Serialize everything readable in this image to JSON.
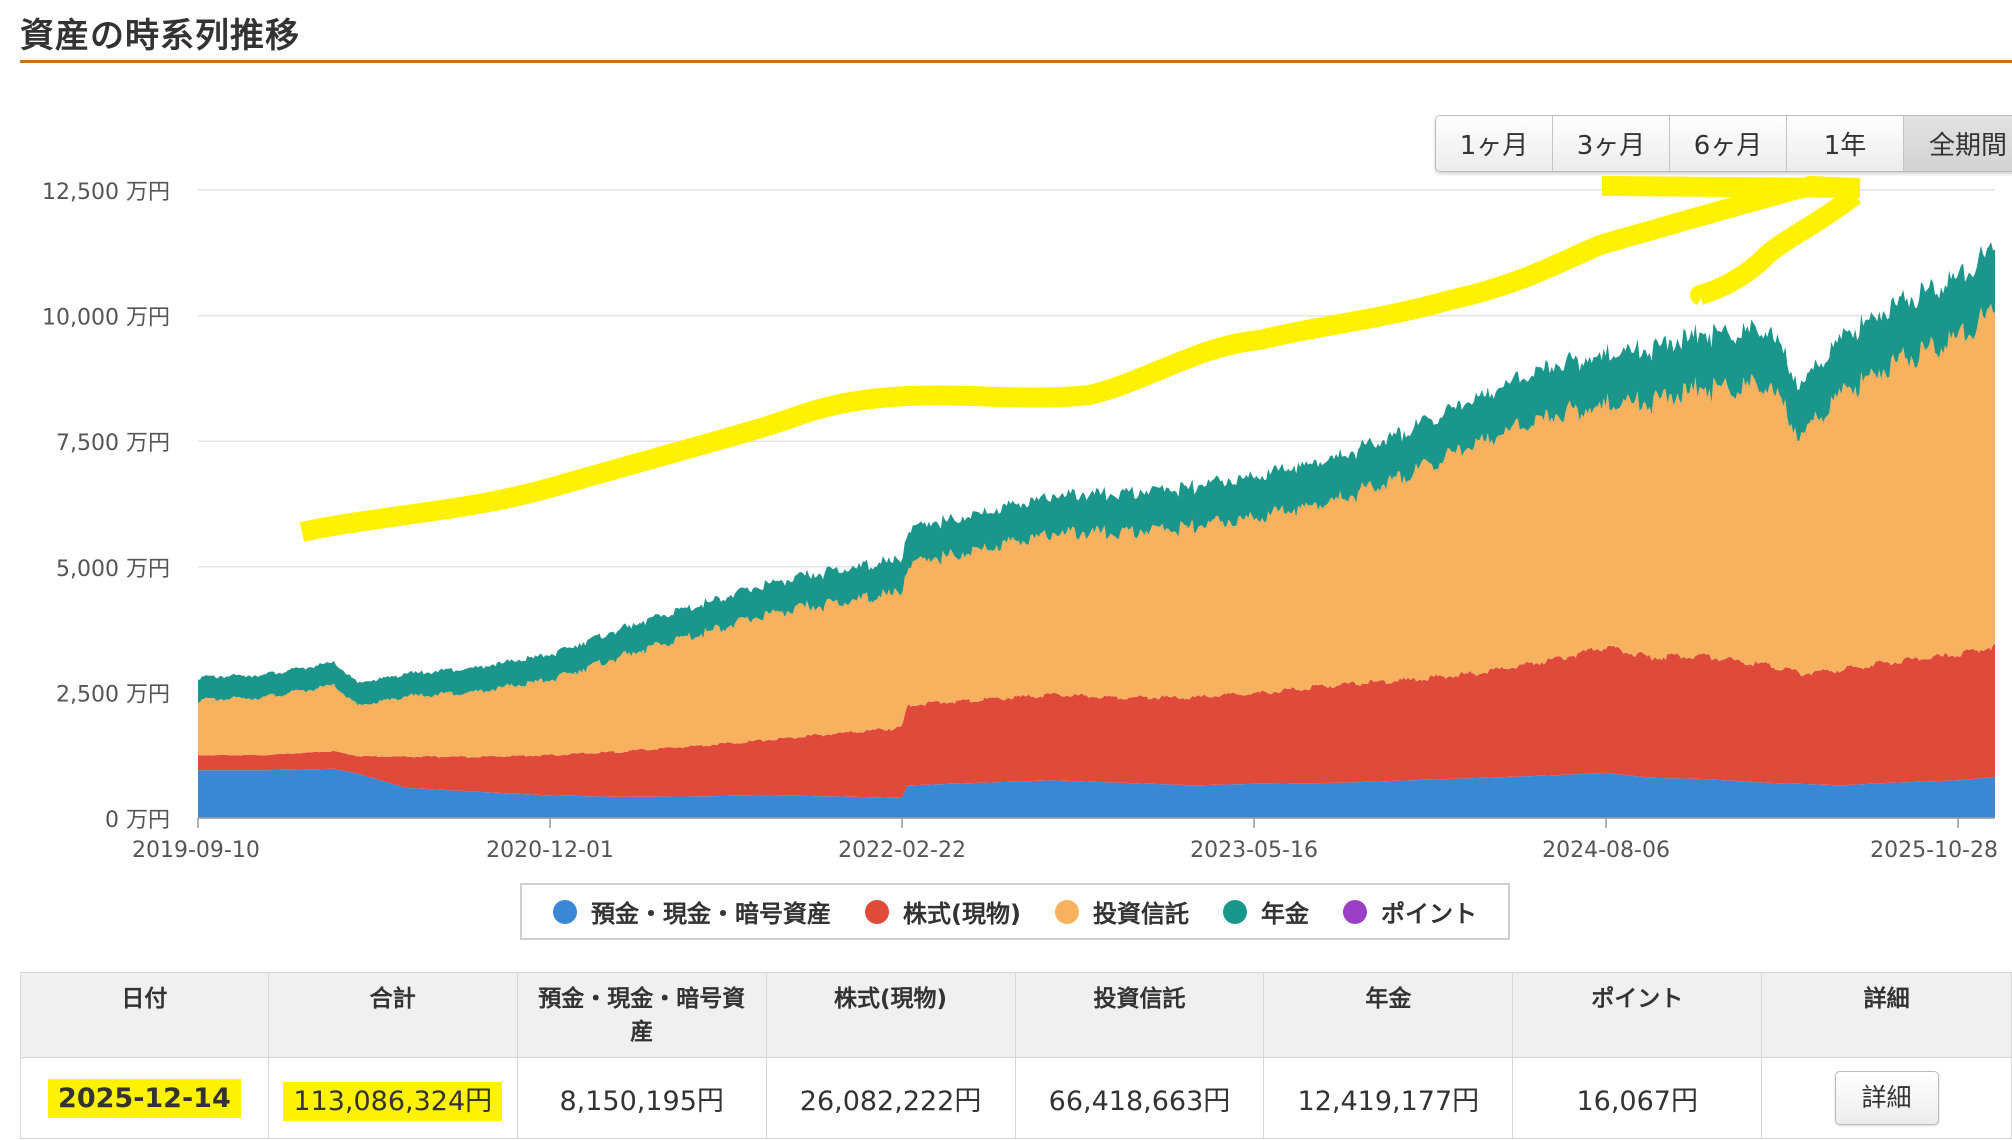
{
  "page": {
    "title": "資産の時系列推移"
  },
  "range_buttons": [
    {
      "label": "1ヶ月"
    },
    {
      "label": "3ヶ月"
    },
    {
      "label": "6ヶ月"
    },
    {
      "label": "1年"
    },
    {
      "label": "全期間",
      "active": true
    }
  ],
  "chart_data": {
    "type": "area",
    "stacked": true,
    "y_ticks": [
      "0 万円",
      "2,500 万円",
      "5,000 万円",
      "7,500 万円",
      "10,000 万円",
      "12,500 万円"
    ],
    "ylim": [
      0,
      12500
    ],
    "y_unit": "万円",
    "x_ticks": [
      "2019-09-10",
      "2020-12-01",
      "2022-02-22",
      "2023-05-16",
      "2024-08-06",
      "2025-10-28"
    ],
    "xlim": [
      "2019-09-10",
      "2025-12-14"
    ],
    "x": [
      "2019-09-10",
      "2019-12-01",
      "2020-03-01",
      "2020-04-01",
      "2020-06-01",
      "2020-09-01",
      "2020-12-01",
      "2021-03-01",
      "2021-06-01",
      "2021-09-01",
      "2021-12-01",
      "2022-02-22",
      "2022-03-01",
      "2022-06-01",
      "2022-09-01",
      "2022-12-01",
      "2023-03-01",
      "2023-05-16",
      "2023-09-01",
      "2023-12-01",
      "2024-03-01",
      "2024-06-01",
      "2024-08-06",
      "2024-10-01",
      "2024-12-01",
      "2025-03-01",
      "2025-04-10",
      "2025-06-01",
      "2025-08-01",
      "2025-10-28",
      "2025-12-14"
    ],
    "series": [
      {
        "name": "預金・現金・暗号資産",
        "color": "#3a87d6",
        "values": [
          950,
          950,
          980,
          880,
          600,
          520,
          450,
          420,
          430,
          450,
          430,
          400,
          650,
          700,
          750,
          700,
          650,
          680,
          700,
          750,
          800,
          850,
          900,
          800,
          780,
          700,
          680,
          650,
          700,
          750,
          815
        ]
      },
      {
        "name": "株式(現物)",
        "color": "#e04a3a",
        "values": [
          300,
          300,
          350,
          350,
          620,
          700,
          800,
          900,
          1000,
          1100,
          1250,
          1400,
          1600,
          1650,
          1700,
          1700,
          1750,
          1800,
          1950,
          2000,
          2100,
          2300,
          2500,
          2400,
          2450,
          2350,
          2200,
          2300,
          2400,
          2500,
          2608
        ]
      },
      {
        "name": "投資信託",
        "color": "#f7b15f",
        "values": [
          1100,
          1150,
          1300,
          1000,
          1200,
          1300,
          1500,
          1900,
          2200,
          2500,
          2600,
          2700,
          2800,
          3000,
          3200,
          3300,
          3400,
          3500,
          3700,
          4100,
          4600,
          4900,
          4800,
          5100,
          5300,
          5600,
          4700,
          5500,
          5900,
          6300,
          6642
        ]
      },
      {
        "name": "年金",
        "color": "#1a968a",
        "values": [
          450,
          450,
          450,
          450,
          450,
          480,
          500,
          550,
          580,
          600,
          650,
          650,
          700,
          720,
          750,
          780,
          800,
          820,
          850,
          880,
          900,
          1000,
          1000,
          1050,
          1080,
          1100,
          1000,
          1100,
          1150,
          1200,
          1242
        ]
      },
      {
        "name": "ポイント",
        "color": "#9b3fc6",
        "values": [
          1,
          1,
          1,
          1,
          1,
          1,
          1,
          1,
          1,
          1,
          1,
          1,
          1,
          1,
          1,
          1,
          1,
          1,
          1,
          1,
          1,
          1,
          1,
          1,
          1,
          1,
          1,
          1,
          1,
          1,
          2
        ]
      }
    ]
  },
  "legend": [
    {
      "label": "預金・現金・暗号資産",
      "color": "#3a87d6"
    },
    {
      "label": "株式(現物)",
      "color": "#e04a3a"
    },
    {
      "label": "投資信託",
      "color": "#f7b15f"
    },
    {
      "label": "年金",
      "color": "#1a968a"
    },
    {
      "label": "ポイント",
      "color": "#9b3fc6"
    }
  ],
  "table": {
    "headers": [
      "日付",
      "合計",
      "預金・現金・暗号資産",
      "株式(現物)",
      "投資信託",
      "年金",
      "ポイント",
      "詳細"
    ],
    "row": {
      "date": "2025-12-14",
      "total": "113,086,324円",
      "deposit": "8,150,195円",
      "stocks": "26,082,222円",
      "funds": "66,418,663円",
      "pension": "12,419,177円",
      "points": "16,067円",
      "detail_label": "詳細"
    }
  },
  "highlight_color": "#fff200"
}
